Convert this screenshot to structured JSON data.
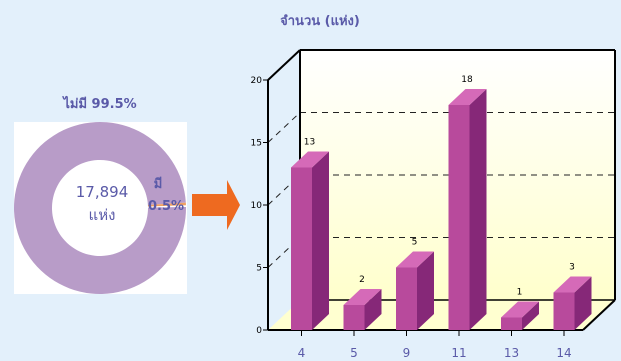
{
  "donut": {
    "title": "ไม่มี 99.5%",
    "center_number": "17,894",
    "center_unit": "แห่ง",
    "have_label": "มี",
    "have_pct": "0.5%",
    "slices": [
      {
        "label": "ไม่มี",
        "percent": 99.5,
        "color": "#b89cc8"
      },
      {
        "label": "มี",
        "percent": 0.5,
        "color": "#f0a060"
      }
    ]
  },
  "colors": {
    "arrow": "#ee6a20",
    "bar_front": "#b84a9c",
    "bar_side": "#862878",
    "bar_top": "#d56ab8",
    "floor": "#ffffd0"
  },
  "chart_data": {
    "type": "bar",
    "ylabel": "จำนวน (แห่ง)",
    "categories": [
      "4",
      "5",
      "9",
      "11",
      "13",
      "14"
    ],
    "values": [
      13,
      2,
      5,
      18,
      1,
      3
    ],
    "yticks": [
      0,
      5,
      10,
      15,
      20
    ],
    "ylim": [
      0,
      20
    ],
    "grid": true
  }
}
